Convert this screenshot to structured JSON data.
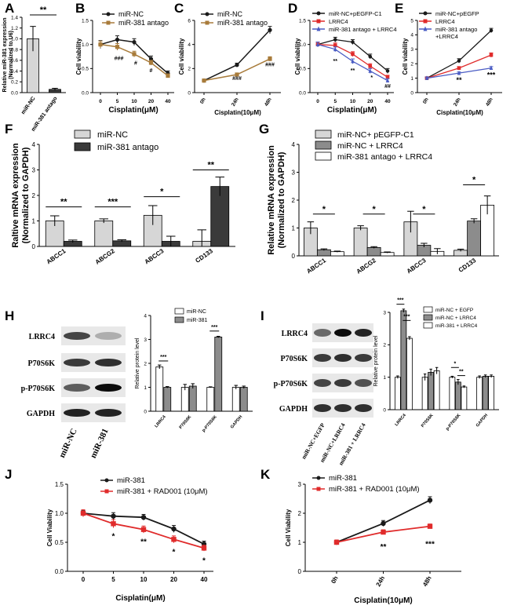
{
  "colors": {
    "black": "#1a1a1a",
    "brown": "#a87b3a",
    "red": "#e02b2b",
    "blue": "#4a5cc4",
    "light_gray": "#d6d6d6",
    "mid_gray": "#8c8c8c",
    "dark_gray": "#3a3a3a",
    "white": "#ffffff"
  },
  "chart_data": [
    {
      "panel": "A",
      "type": "bar",
      "categories": [
        "miR-NC",
        "miR-381 antago"
      ],
      "values": [
        1.0,
        0.06
      ],
      "errors": [
        0.23,
        0.02
      ],
      "ylabel_lines": [
        "Relative miR-381 expression",
        "(Normalized to U6)"
      ],
      "ylim": [
        0,
        1.4
      ],
      "yticks": [
        "0.0",
        "0.2",
        "0.4",
        "0.6",
        "0.8",
        "1.0",
        "1.2",
        "1.4"
      ],
      "significance": [
        "**"
      ]
    },
    {
      "panel": "B",
      "type": "line",
      "x": [
        "0",
        "5",
        "10",
        "20",
        "40"
      ],
      "series": [
        {
          "name": "miR-NC",
          "values": [
            1.0,
            1.1,
            1.05,
            0.7,
            0.4
          ],
          "errors": [
            0.08,
            0.08,
            0.07,
            0.06,
            0.05
          ]
        },
        {
          "name": "miR-381 antago",
          "values": [
            1.0,
            0.95,
            0.8,
            0.62,
            0.35
          ],
          "errors": [
            0.07,
            0.07,
            0.06,
            0.05,
            0.04
          ]
        }
      ],
      "xlabel": "Cisplatin(μM)",
      "ylabel": "Cell viability",
      "ylim": [
        0,
        1.5
      ],
      "yticks": [
        "0.0",
        "0.5",
        "1.0",
        "1.5"
      ],
      "annotations": [
        "###",
        "#",
        "#"
      ]
    },
    {
      "panel": "C",
      "type": "line",
      "x": [
        "0h",
        "24h",
        "48h"
      ],
      "series": [
        {
          "name": "miR-NC",
          "values": [
            1.0,
            2.3,
            5.2
          ],
          "errors": [
            0.1,
            0.15,
            0.3
          ]
        },
        {
          "name": "miR-381 antago",
          "values": [
            1.0,
            1.5,
            2.8
          ],
          "errors": [
            0.1,
            0.1,
            0.18
          ]
        }
      ],
      "xlabel": "Cisplatin(10μM)",
      "ylabel": "Cell viability",
      "ylim": [
        0,
        6
      ],
      "yticks": [
        "0",
        "2",
        "4",
        "6"
      ],
      "annotations": [
        "###",
        "###"
      ]
    },
    {
      "panel": "D",
      "type": "line",
      "x": [
        "0",
        "5",
        "10",
        "20",
        "40"
      ],
      "series": [
        {
          "name": "miR-NC+pEGFP-C1",
          "values": [
            1.0,
            1.1,
            1.05,
            0.75,
            0.45
          ],
          "errors": [
            0.05,
            0.05,
            0.05,
            0.05,
            0.05
          ]
        },
        {
          "name": "LRRC4",
          "values": [
            1.0,
            0.98,
            0.8,
            0.55,
            0.32
          ],
          "errors": [
            0.05,
            0.05,
            0.05,
            0.05,
            0.04
          ]
        },
        {
          "name": "miR-381 antago + LRRC4",
          "values": [
            1.0,
            0.9,
            0.65,
            0.45,
            0.25
          ],
          "errors": [
            0.05,
            0.05,
            0.05,
            0.05,
            0.04
          ]
        }
      ],
      "xlabel": "Cisplatin(μM)",
      "ylabel": "Cell viability",
      "ylim": [
        0,
        1.5
      ],
      "yticks": [
        "0.0",
        "0.5",
        "1.0",
        "1.5"
      ],
      "annotations": [
        "**",
        "**",
        "*",
        "##"
      ]
    },
    {
      "panel": "E",
      "type": "line",
      "x": [
        "0h",
        "24h",
        "48h"
      ],
      "series": [
        {
          "name": "miR-NC+pEGFP",
          "values": [
            1.0,
            2.2,
            4.3
          ],
          "errors": [
            0.08,
            0.15,
            0.15
          ]
        },
        {
          "name": "LRRC4",
          "values": [
            1.0,
            1.7,
            2.6
          ],
          "errors": [
            0.08,
            0.1,
            0.15
          ]
        },
        {
          "name": "miR-381 antago +LRRC4",
          "values": [
            1.0,
            1.35,
            1.7
          ],
          "errors": [
            0.08,
            0.08,
            0.1
          ]
        }
      ],
      "xlabel": "Cisplatin(10μM)",
      "ylabel": "Cell viability",
      "ylim": [
        0,
        5
      ],
      "yticks": [
        "0",
        "1",
        "2",
        "3",
        "4",
        "5"
      ],
      "annotations": [
        "**",
        "***"
      ]
    },
    {
      "panel": "F",
      "type": "bar",
      "categories": [
        "ABCC1",
        "ABCG2",
        "ABCC3",
        "CD133"
      ],
      "series": [
        {
          "name": "miR-NC",
          "values": [
            1.0,
            1.0,
            1.22,
            0.2
          ],
          "errors": [
            0.2,
            0.08,
            0.38,
            0.45
          ]
        },
        {
          "name": "miR-381 antago",
          "values": [
            0.2,
            0.22,
            0.2,
            2.35
          ],
          "errors": [
            0.05,
            0.04,
            0.2,
            0.37
          ]
        }
      ],
      "ylabel_lines": [
        "Raltive mRNA expression",
        "(Normalized to GAPDH)"
      ],
      "ylim": [
        0,
        4
      ],
      "yticks": [
        "0",
        "1",
        "2",
        "3",
        "4"
      ],
      "significance": [
        "**",
        "***",
        "*",
        "**"
      ]
    },
    {
      "panel": "G",
      "type": "bar",
      "categories": [
        "ABCC1",
        "ABCG2",
        "ABCC3",
        "CD133"
      ],
      "series": [
        {
          "name": "miR-NC+ pEGFP-C1",
          "values": [
            1.0,
            1.0,
            1.22,
            0.2
          ],
          "errors": [
            0.22,
            0.08,
            0.38,
            0.04
          ]
        },
        {
          "name": "miR-NC + LRRC4",
          "values": [
            0.22,
            0.3,
            0.38,
            1.25
          ],
          "errors": [
            0.03,
            0.03,
            0.07,
            0.08
          ]
        },
        {
          "name": "miR-381 antago + LRRC4",
          "values": [
            0.15,
            0.12,
            0.16,
            1.82
          ],
          "errors": [
            0.02,
            0.02,
            0.1,
            0.33
          ]
        }
      ],
      "ylabel_lines": [
        "Relative mRNA expression",
        "(Normalized to GAPDH)"
      ],
      "ylim": [
        0,
        4
      ],
      "yticks": [
        "0",
        "1",
        "2",
        "3",
        "4"
      ],
      "significance": [
        "*",
        "*",
        "*",
        "*"
      ]
    },
    {
      "panel": "H",
      "type": "bar",
      "categories": [
        "LRRC4",
        "P70S6K",
        "p-P70S6K",
        "GAPDH"
      ],
      "series": [
        {
          "name": "miR-NC",
          "values": [
            1.85,
            1.0,
            1.0,
            1.0
          ],
          "errors": [
            0.08,
            0.12,
            0.02,
            0.08
          ]
        },
        {
          "name": "miR-381",
          "values": [
            1.0,
            1.05,
            3.1,
            1.0
          ],
          "errors": [
            0.03,
            0.1,
            0.03,
            0.05
          ]
        }
      ],
      "ylabel": "Relative protein level",
      "ylim": [
        0,
        4
      ],
      "yticks": [
        "0",
        "1",
        "2",
        "3",
        "4"
      ],
      "significance": [
        "***",
        "***"
      ],
      "blot_rows": [
        "LRRC4",
        "P70S6K",
        "p-P70S6K",
        "GAPDH"
      ],
      "blot_lanes": [
        "miR-NC",
        "miR-381"
      ]
    },
    {
      "panel": "I",
      "type": "bar",
      "categories": [
        "LRRC4",
        "P70S6K",
        "p-P70S6K",
        "GAPDH"
      ],
      "series": [
        {
          "name": "miR-NC + EGFP",
          "values": [
            1.0,
            1.0,
            1.0,
            1.0
          ],
          "errors": [
            0.04,
            0.1,
            0.03,
            0.04
          ]
        },
        {
          "name": "miR-NC + LRRC4",
          "values": [
            3.05,
            1.15,
            0.85,
            1.03
          ],
          "errors": [
            0.05,
            0.1,
            0.08,
            0.04
          ]
        },
        {
          "name": "miR-381 + LRRC4",
          "values": [
            2.2,
            1.2,
            0.7,
            1.03
          ],
          "errors": [
            0.05,
            0.1,
            0.03,
            0.04
          ]
        }
      ],
      "ylabel": "Relative protein level",
      "ylim": [
        0,
        3
      ],
      "yticks": [
        "0",
        "1",
        "2",
        "3"
      ],
      "significance": [
        "***",
        "***",
        "*",
        "**"
      ],
      "blot_rows": [
        "LRRC4",
        "P70S6K",
        "p-P70S6K",
        "GAPDH"
      ],
      "blot_lanes": [
        "miR-NC+EGFP",
        "miR-NC+LRRC4",
        "miR-381 + LRRC4"
      ]
    },
    {
      "panel": "J",
      "type": "line",
      "x": [
        "0",
        "5",
        "10",
        "20",
        "40"
      ],
      "series": [
        {
          "name": "miR-381",
          "values": [
            1.0,
            0.95,
            0.93,
            0.73,
            0.47
          ],
          "errors": [
            0.05,
            0.06,
            0.05,
            0.06,
            0.05
          ]
        },
        {
          "name": "miR-381 + RAD001 (10μM)",
          "values": [
            1.0,
            0.82,
            0.72,
            0.55,
            0.4
          ],
          "errors": [
            0.06,
            0.07,
            0.06,
            0.06,
            0.05
          ]
        }
      ],
      "xlabel": "Cisplatin(μM)",
      "ylabel": "Cell Viability",
      "ylim": [
        0,
        1.5
      ],
      "yticks": [
        "0.0",
        "0.5",
        "1.0",
        "1.5"
      ],
      "annotations": [
        "*",
        "**",
        "*",
        "*"
      ]
    },
    {
      "panel": "K",
      "type": "line",
      "x": [
        "0h",
        "24h",
        "48h"
      ],
      "series": [
        {
          "name": "miR-381",
          "values": [
            1.0,
            1.65,
            2.45
          ],
          "errors": [
            0.08,
            0.1,
            0.12
          ]
        },
        {
          "name": "miR-381 + RAD001 (10μM)",
          "values": [
            1.0,
            1.35,
            1.55
          ],
          "errors": [
            0.08,
            0.08,
            0.08
          ]
        }
      ],
      "xlabel": "Cisplatin(10μM)",
      "ylabel": "Cell Viability",
      "ylim": [
        0,
        3
      ],
      "yticks": [
        "0",
        "1",
        "2",
        "3"
      ],
      "annotations": [
        "**",
        "***"
      ]
    }
  ]
}
